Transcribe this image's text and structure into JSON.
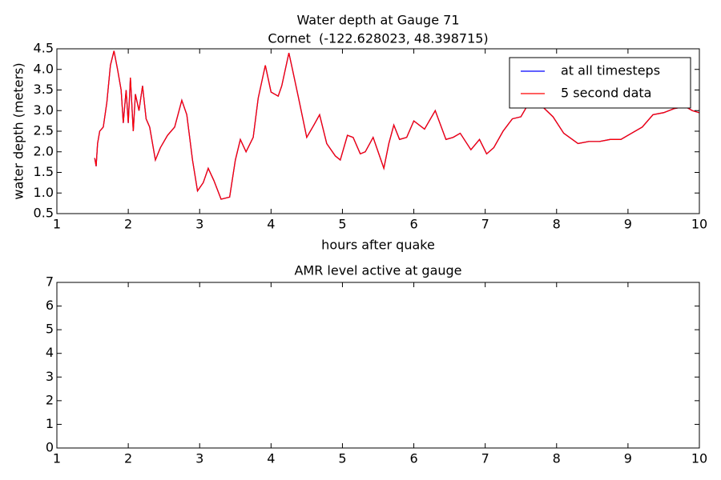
{
  "chart_data": [
    {
      "type": "line",
      "title": "Water depth at Gauge 71",
      "subtitle": "Cornet  (-122.628023, 48.398715)",
      "x_label": "hours after quake",
      "y_label": "water depth (meters)",
      "xlim": [
        1,
        10
      ],
      "xticks": [
        1,
        2,
        3,
        4,
        5,
        6,
        7,
        8,
        9,
        10
      ],
      "ylim": [
        0.5,
        4.5
      ],
      "yticks": [
        0.5,
        {
          "value": 1,
          "label": "1.0"
        },
        1.5,
        {
          "value": 2,
          "label": "2.0"
        },
        2.5,
        {
          "value": 3,
          "label": "3.0"
        },
        3.5,
        {
          "value": 4,
          "label": "4.0"
        },
        4.5
      ],
      "legend": "upper right",
      "x": [
        1.53,
        1.55,
        1.57,
        1.6,
        1.65,
        1.7,
        1.75,
        1.8,
        1.85,
        1.9,
        1.93,
        1.97,
        2.0,
        2.03,
        2.07,
        2.1,
        2.15,
        2.2,
        2.25,
        2.3,
        2.38,
        2.45,
        2.55,
        2.65,
        2.75,
        2.82,
        2.9,
        2.97,
        3.05,
        3.12,
        3.2,
        3.3,
        3.42,
        3.5,
        3.57,
        3.65,
        3.75,
        3.82,
        3.92,
        4.0,
        4.1,
        4.15,
        4.25,
        4.3,
        4.38,
        4.5,
        4.6,
        4.68,
        4.78,
        4.9,
        4.97,
        5.07,
        5.15,
        5.25,
        5.32,
        5.43,
        5.5,
        5.58,
        5.65,
        5.72,
        5.8,
        5.9,
        6.0,
        6.15,
        6.3,
        6.45,
        6.55,
        6.65,
        6.8,
        6.92,
        7.02,
        7.12,
        7.25,
        7.38,
        7.5,
        7.65,
        7.8,
        7.95,
        8.1,
        8.3,
        8.45,
        8.6,
        8.75,
        8.9,
        9.05,
        9.2,
        9.35,
        9.5,
        9.65,
        9.8,
        9.9,
        10.0
      ],
      "series": [
        {
          "name": "at all timesteps",
          "color": "#0000ff",
          "values": [
            1.85,
            1.65,
            2.2,
            2.5,
            2.6,
            3.2,
            4.1,
            4.45,
            4.0,
            3.5,
            2.7,
            3.5,
            2.7,
            3.8,
            2.5,
            3.4,
            3.0,
            3.6,
            2.8,
            2.6,
            1.8,
            2.1,
            2.4,
            2.6,
            3.25,
            2.9,
            1.8,
            1.05,
            1.25,
            1.6,
            1.3,
            0.85,
            0.9,
            1.8,
            2.3,
            2.0,
            2.35,
            3.3,
            4.1,
            3.45,
            3.35,
            3.6,
            4.4,
            4.0,
            3.35,
            2.35,
            2.65,
            2.9,
            2.2,
            1.9,
            1.8,
            2.4,
            2.35,
            1.95,
            2.0,
            2.35,
            2.0,
            1.6,
            2.2,
            2.65,
            2.3,
            2.35,
            2.75,
            2.55,
            3.0,
            2.3,
            2.35,
            2.45,
            2.05,
            2.3,
            1.95,
            2.1,
            2.5,
            2.8,
            2.85,
            3.3,
            3.1,
            2.85,
            2.45,
            2.2,
            2.25,
            2.25,
            2.3,
            2.3,
            2.45,
            2.6,
            2.9,
            2.95,
            3.05,
            3.1,
            3.0,
            2.95
          ]
        },
        {
          "name": "5 second data",
          "color": "#ff0000",
          "values": [
            1.85,
            1.65,
            2.2,
            2.5,
            2.6,
            3.2,
            4.1,
            4.45,
            4.0,
            3.5,
            2.7,
            3.5,
            2.7,
            3.8,
            2.5,
            3.4,
            3.0,
            3.6,
            2.8,
            2.6,
            1.8,
            2.1,
            2.4,
            2.6,
            3.25,
            2.9,
            1.8,
            1.05,
            1.25,
            1.6,
            1.3,
            0.85,
            0.9,
            1.8,
            2.3,
            2.0,
            2.35,
            3.3,
            4.1,
            3.45,
            3.35,
            3.6,
            4.4,
            4.0,
            3.35,
            2.35,
            2.65,
            2.9,
            2.2,
            1.9,
            1.8,
            2.4,
            2.35,
            1.95,
            2.0,
            2.35,
            2.0,
            1.6,
            2.2,
            2.65,
            2.3,
            2.35,
            2.75,
            2.55,
            3.0,
            2.3,
            2.35,
            2.45,
            2.05,
            2.3,
            1.95,
            2.1,
            2.5,
            2.8,
            2.85,
            3.3,
            3.1,
            2.85,
            2.45,
            2.2,
            2.25,
            2.25,
            2.3,
            2.3,
            2.45,
            2.6,
            2.9,
            2.95,
            3.05,
            3.1,
            3.0,
            2.95
          ]
        }
      ]
    },
    {
      "type": "line",
      "title": "AMR level active at gauge",
      "xlim": [
        1,
        10
      ],
      "xticks": [
        1,
        2,
        3,
        4,
        5,
        6,
        7,
        8,
        9,
        10
      ],
      "ylim": [
        0,
        7
      ],
      "yticks": [
        0,
        1,
        2,
        3,
        4,
        5,
        6,
        7
      ],
      "series": []
    }
  ]
}
